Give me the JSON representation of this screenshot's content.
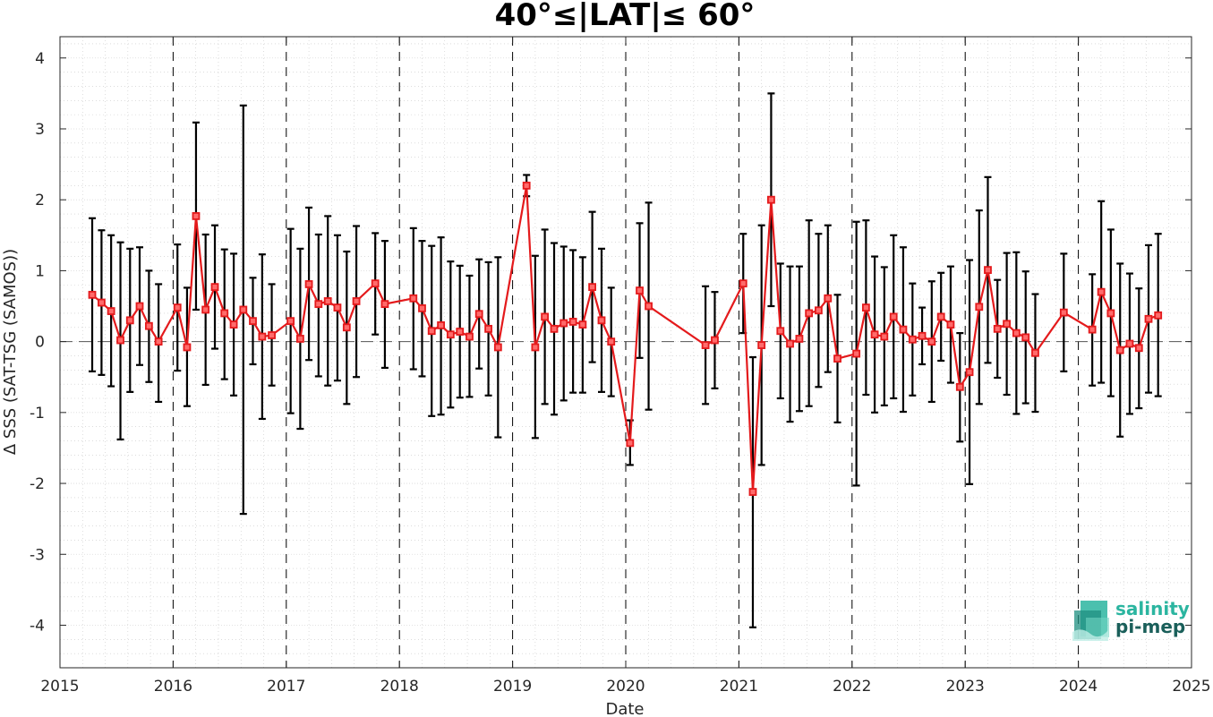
{
  "chart_data": {
    "type": "line",
    "title": "40°≤|LAT|≤ 60°",
    "xlabel": "Date",
    "ylabel": "Δ SSS (SAT-TSG (SAMOS))",
    "xlim": [
      "2015-01-01",
      "2025-01-01"
    ],
    "ylim": [
      -4.6,
      4.3
    ],
    "x_ticks": [
      "2015",
      "2016",
      "2017",
      "2018",
      "2019",
      "2020",
      "2021",
      "2022",
      "2023",
      "2024",
      "2025"
    ],
    "y_ticks": [
      "4",
      "3",
      "2",
      "1",
      "0",
      "-1",
      "-2",
      "-3",
      "-4"
    ],
    "grid": true,
    "minor_grid": true,
    "reference_line": 0,
    "year_separator_lines": [
      "2016",
      "2017",
      "2018",
      "2019",
      "2020",
      "2021",
      "2022",
      "2023",
      "2024"
    ],
    "series": [
      {
        "color": "#e41a1c",
        "errorbar_color": "#000000",
        "marker": "square",
        "points": [
          {
            "x": "2015-04-15",
            "y": 0.66,
            "lo": -0.42,
            "hi": 1.74
          },
          {
            "x": "2015-05-15",
            "y": 0.55,
            "lo": -0.47,
            "hi": 1.57
          },
          {
            "x": "2015-06-15",
            "y": 0.43,
            "lo": -0.63,
            "hi": 1.5
          },
          {
            "x": "2015-07-15",
            "y": 0.02,
            "lo": -1.38,
            "hi": 1.4
          },
          {
            "x": "2015-08-15",
            "y": 0.3,
            "lo": -0.71,
            "hi": 1.31
          },
          {
            "x": "2015-09-15",
            "y": 0.5,
            "lo": -0.33,
            "hi": 1.33
          },
          {
            "x": "2015-10-15",
            "y": 0.22,
            "lo": -0.57,
            "hi": 1.0
          },
          {
            "x": "2015-11-15",
            "y": 0.0,
            "lo": -0.85,
            "hi": 0.81
          },
          {
            "x": "2016-01-15",
            "y": 0.48,
            "lo": -0.41,
            "hi": 1.37
          },
          {
            "x": "2016-02-15",
            "y": -0.08,
            "lo": -0.91,
            "hi": 0.76
          },
          {
            "x": "2016-03-15",
            "y": 1.77,
            "lo": 0.45,
            "hi": 3.09
          },
          {
            "x": "2016-04-15",
            "y": 0.45,
            "lo": -0.61,
            "hi": 1.51
          },
          {
            "x": "2016-05-15",
            "y": 0.77,
            "lo": -0.1,
            "hi": 1.64
          },
          {
            "x": "2016-06-15",
            "y": 0.4,
            "lo": -0.53,
            "hi": 1.3
          },
          {
            "x": "2016-07-15",
            "y": 0.24,
            "lo": -0.76,
            "hi": 1.24
          },
          {
            "x": "2016-08-15",
            "y": 0.45,
            "lo": -2.43,
            "hi": 3.33
          },
          {
            "x": "2016-09-15",
            "y": 0.29,
            "lo": -0.32,
            "hi": 0.9
          },
          {
            "x": "2016-10-15",
            "y": 0.07,
            "lo": -1.09,
            "hi": 1.23
          },
          {
            "x": "2016-11-15",
            "y": 0.09,
            "lo": -0.62,
            "hi": 0.81
          },
          {
            "x": "2017-01-15",
            "y": 0.29,
            "lo": -1.01,
            "hi": 1.59
          },
          {
            "x": "2017-02-15",
            "y": 0.04,
            "lo": -1.23,
            "hi": 1.31
          },
          {
            "x": "2017-03-15",
            "y": 0.81,
            "lo": -0.26,
            "hi": 1.89
          },
          {
            "x": "2017-04-15",
            "y": 0.53,
            "lo": -0.49,
            "hi": 1.51
          },
          {
            "x": "2017-05-15",
            "y": 0.57,
            "lo": -0.62,
            "hi": 1.77
          },
          {
            "x": "2017-06-15",
            "y": 0.48,
            "lo": -0.55,
            "hi": 1.5
          },
          {
            "x": "2017-07-15",
            "y": 0.2,
            "lo": -0.88,
            "hi": 1.27
          },
          {
            "x": "2017-08-15",
            "y": 0.57,
            "lo": -0.5,
            "hi": 1.63
          },
          {
            "x": "2017-10-15",
            "y": 0.82,
            "lo": 0.1,
            "hi": 1.53
          },
          {
            "x": "2017-11-15",
            "y": 0.53,
            "lo": -0.37,
            "hi": 1.42
          },
          {
            "x": "2018-02-15",
            "y": 0.61,
            "lo": -0.39,
            "hi": 1.6
          },
          {
            "x": "2018-03-15",
            "y": 0.47,
            "lo": -0.49,
            "hi": 1.42
          },
          {
            "x": "2018-04-15",
            "y": 0.15,
            "lo": -1.05,
            "hi": 1.35
          },
          {
            "x": "2018-05-15",
            "y": 0.23,
            "lo": -1.03,
            "hi": 1.47
          },
          {
            "x": "2018-06-15",
            "y": 0.1,
            "lo": -0.93,
            "hi": 1.13
          },
          {
            "x": "2018-07-15",
            "y": 0.14,
            "lo": -0.79,
            "hi": 1.07
          },
          {
            "x": "2018-08-15",
            "y": 0.07,
            "lo": -0.78,
            "hi": 0.93
          },
          {
            "x": "2018-09-15",
            "y": 0.39,
            "lo": -0.38,
            "hi": 1.16
          },
          {
            "x": "2018-10-15",
            "y": 0.18,
            "lo": -0.76,
            "hi": 1.12
          },
          {
            "x": "2018-11-15",
            "y": -0.08,
            "lo": -1.35,
            "hi": 1.19
          },
          {
            "x": "2019-02-15",
            "y": 2.2,
            "lo": 2.05,
            "hi": 2.35
          },
          {
            "x": "2019-03-15",
            "y": -0.08,
            "lo": -1.36,
            "hi": 1.21
          },
          {
            "x": "2019-04-15",
            "y": 0.35,
            "lo": -0.88,
            "hi": 1.58
          },
          {
            "x": "2019-05-15",
            "y": 0.18,
            "lo": -1.03,
            "hi": 1.39
          },
          {
            "x": "2019-06-15",
            "y": 0.26,
            "lo": -0.83,
            "hi": 1.34
          },
          {
            "x": "2019-07-15",
            "y": 0.28,
            "lo": -0.72,
            "hi": 1.29
          },
          {
            "x": "2019-08-15",
            "y": 0.24,
            "lo": -0.72,
            "hi": 1.19
          },
          {
            "x": "2019-09-15",
            "y": 0.77,
            "lo": -0.29,
            "hi": 1.83
          },
          {
            "x": "2019-10-15",
            "y": 0.3,
            "lo": -0.71,
            "hi": 1.31
          },
          {
            "x": "2019-11-15",
            "y": 0.0,
            "lo": -0.77,
            "hi": 0.76
          },
          {
            "x": "2020-01-15",
            "y": -1.43,
            "lo": -1.74,
            "hi": -1.11
          },
          {
            "x": "2020-02-15",
            "y": 0.72,
            "lo": -0.23,
            "hi": 1.67
          },
          {
            "x": "2020-03-15",
            "y": 0.5,
            "lo": -0.96,
            "hi": 1.96
          },
          {
            "x": "2020-09-15",
            "y": -0.05,
            "lo": -0.88,
            "hi": 0.78
          },
          {
            "x": "2020-10-15",
            "y": 0.02,
            "lo": -0.66,
            "hi": 0.7
          },
          {
            "x": "2021-01-15",
            "y": 0.82,
            "lo": 0.12,
            "hi": 1.52
          },
          {
            "x": "2021-02-15",
            "y": -2.12,
            "lo": -4.03,
            "hi": -0.22
          },
          {
            "x": "2021-03-15",
            "y": -0.05,
            "lo": -1.74,
            "hi": 1.64
          },
          {
            "x": "2021-04-15",
            "y": 2.0,
            "lo": 0.5,
            "hi": 3.5
          },
          {
            "x": "2021-05-15",
            "y": 0.15,
            "lo": -0.8,
            "hi": 1.1
          },
          {
            "x": "2021-06-15",
            "y": -0.03,
            "lo": -1.13,
            "hi": 1.06
          },
          {
            "x": "2021-07-15",
            "y": 0.04,
            "lo": -0.98,
            "hi": 1.06
          },
          {
            "x": "2021-08-15",
            "y": 0.4,
            "lo": -0.91,
            "hi": 1.71
          },
          {
            "x": "2021-09-15",
            "y": 0.44,
            "lo": -0.64,
            "hi": 1.52
          },
          {
            "x": "2021-10-15",
            "y": 0.61,
            "lo": -0.43,
            "hi": 1.64
          },
          {
            "x": "2021-11-15",
            "y": -0.24,
            "lo": -1.14,
            "hi": 0.66
          },
          {
            "x": "2022-01-15",
            "y": -0.17,
            "lo": -2.03,
            "hi": 1.69
          },
          {
            "x": "2022-02-15",
            "y": 0.48,
            "lo": -0.75,
            "hi": 1.71
          },
          {
            "x": "2022-03-15",
            "y": 0.1,
            "lo": -1.0,
            "hi": 1.2
          },
          {
            "x": "2022-04-15",
            "y": 0.07,
            "lo": -0.9,
            "hi": 1.05
          },
          {
            "x": "2022-05-15",
            "y": 0.35,
            "lo": -0.8,
            "hi": 1.5
          },
          {
            "x": "2022-06-15",
            "y": 0.17,
            "lo": -0.99,
            "hi": 1.33
          },
          {
            "x": "2022-07-15",
            "y": 0.03,
            "lo": -0.76,
            "hi": 0.82
          },
          {
            "x": "2022-08-15",
            "y": 0.08,
            "lo": -0.32,
            "hi": 0.48
          },
          {
            "x": "2022-09-15",
            "y": 0.0,
            "lo": -0.85,
            "hi": 0.85
          },
          {
            "x": "2022-10-15",
            "y": 0.35,
            "lo": -0.27,
            "hi": 0.97
          },
          {
            "x": "2022-11-15",
            "y": 0.24,
            "lo": -0.58,
            "hi": 1.06
          },
          {
            "x": "2022-12-15",
            "y": -0.64,
            "lo": -1.41,
            "hi": 0.12
          },
          {
            "x": "2023-01-15",
            "y": -0.43,
            "lo": -2.01,
            "hi": 1.15
          },
          {
            "x": "2023-02-15",
            "y": 0.49,
            "lo": -0.88,
            "hi": 1.85
          },
          {
            "x": "2023-03-15",
            "y": 1.01,
            "lo": -0.3,
            "hi": 2.32
          },
          {
            "x": "2023-04-15",
            "y": 0.18,
            "lo": -0.51,
            "hi": 0.87
          },
          {
            "x": "2023-05-15",
            "y": 0.25,
            "lo": -0.75,
            "hi": 1.25
          },
          {
            "x": "2023-06-15",
            "y": 0.12,
            "lo": -1.02,
            "hi": 1.26
          },
          {
            "x": "2023-07-15",
            "y": 0.06,
            "lo": -0.87,
            "hi": 0.99
          },
          {
            "x": "2023-08-15",
            "y": -0.16,
            "lo": -0.99,
            "hi": 0.67
          },
          {
            "x": "2023-11-15",
            "y": 0.41,
            "lo": -0.42,
            "hi": 1.24
          },
          {
            "x": "2024-02-15",
            "y": 0.17,
            "lo": -0.62,
            "hi": 0.95
          },
          {
            "x": "2024-03-15",
            "y": 0.7,
            "lo": -0.58,
            "hi": 1.98
          },
          {
            "x": "2024-04-15",
            "y": 0.4,
            "lo": -0.77,
            "hi": 1.58
          },
          {
            "x": "2024-05-15",
            "y": -0.12,
            "lo": -1.34,
            "hi": 1.1
          },
          {
            "x": "2024-06-15",
            "y": -0.03,
            "lo": -1.02,
            "hi": 0.96
          },
          {
            "x": "2024-07-15",
            "y": -0.09,
            "lo": -0.94,
            "hi": 0.75
          },
          {
            "x": "2024-08-15",
            "y": 0.32,
            "lo": -0.72,
            "hi": 1.36
          },
          {
            "x": "2024-09-15",
            "y": 0.37,
            "lo": -0.77,
            "hi": 1.52
          }
        ]
      }
    ]
  },
  "logo": {
    "line1": "salinity",
    "line2": "pi-mep",
    "color1": "#2bb5a0",
    "color2": "#1a5f5a"
  }
}
